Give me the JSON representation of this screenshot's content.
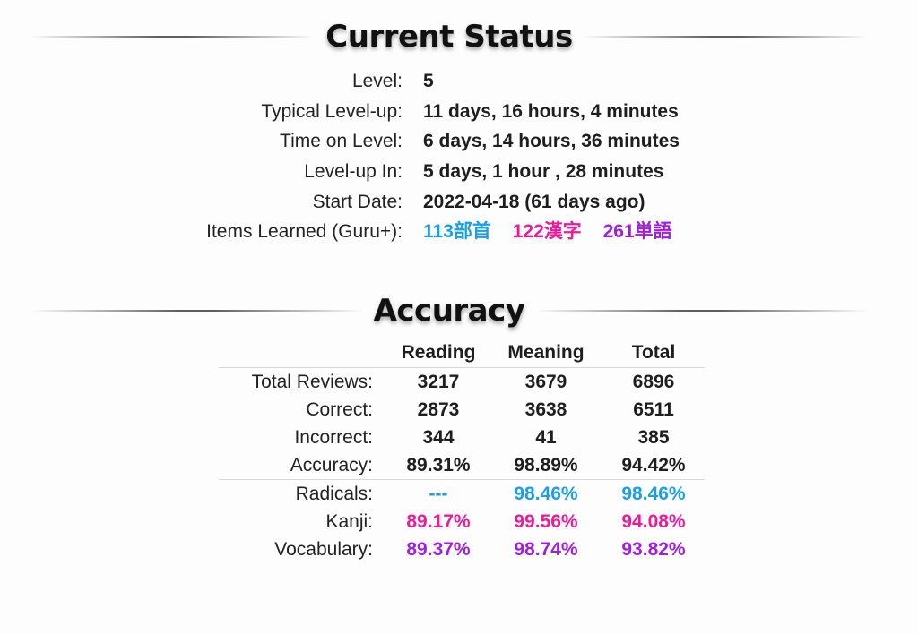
{
  "current_status": {
    "title": "Current Status",
    "rows": [
      {
        "label": "Level:",
        "value": "5"
      },
      {
        "label": "Typical Level-up:",
        "value": "11 days, 16 hours, 4 minutes"
      },
      {
        "label": "Time on Level:",
        "value": "6 days, 14 hours, 36 minutes"
      },
      {
        "label": "Level-up In:",
        "value": "5 days, 1 hour , 28 minutes"
      },
      {
        "label": "Start Date:",
        "value": "2022-04-18 (61 days ago)"
      }
    ],
    "items_learned": {
      "label": "Items Learned (Guru+):",
      "radicals": "113部首",
      "kanji": "122漢字",
      "vocabulary": "261単語"
    }
  },
  "accuracy": {
    "title": "Accuracy",
    "columns": [
      "Reading",
      "Meaning",
      "Total"
    ],
    "rows": [
      {
        "label": "Total Reviews:",
        "values": [
          "3217",
          "3679",
          "6896"
        ],
        "kind": "plain"
      },
      {
        "label": "Correct:",
        "values": [
          "2873",
          "3638",
          "6511"
        ],
        "kind": "plain"
      },
      {
        "label": "Incorrect:",
        "values": [
          "344",
          "41",
          "385"
        ],
        "kind": "plain"
      },
      {
        "label": "Accuracy:",
        "values": [
          "89.31%",
          "98.89%",
          "94.42%"
        ],
        "kind": "plain"
      },
      {
        "label": "Radicals:",
        "values": [
          "---",
          "98.46%",
          "98.46%"
        ],
        "kind": "radical"
      },
      {
        "label": "Kanji:",
        "values": [
          "89.17%",
          "99.56%",
          "94.08%"
        ],
        "kind": "kanji"
      },
      {
        "label": "Vocabulary:",
        "values": [
          "89.37%",
          "98.74%",
          "93.82%"
        ],
        "kind": "vocab"
      }
    ]
  },
  "colors": {
    "radical": "#1aa0e6",
    "kanji": "#ee1a9a",
    "vocabulary": "#a11de0"
  }
}
